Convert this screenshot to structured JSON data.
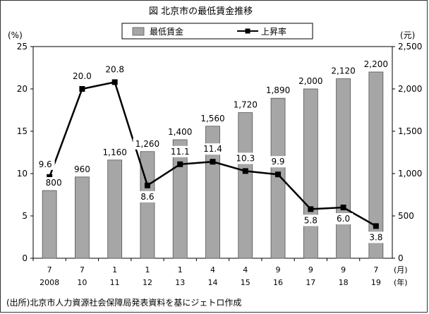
{
  "title": "図 北京市の最低賃金推移",
  "legend": {
    "bar_label": "最低賃金",
    "line_label": "上昇率"
  },
  "left_axis_unit": "(%)",
  "right_axis_unit": "(元)",
  "x_unit_month": "(月)",
  "x_unit_year": "(年)",
  "source": "(出所)北京市人力資源社会保障局発表資料を基にジェトロ作成",
  "colors": {
    "bar": "#a6a6a6",
    "bar_stroke": "#555555",
    "line": "#000000"
  },
  "chart_data": {
    "type": "bar",
    "title": "図 北京市の最低賃金推移",
    "categories": [
      {
        "month": "7",
        "year": "2008"
      },
      {
        "month": "7",
        "year": "10"
      },
      {
        "month": "1",
        "year": "11"
      },
      {
        "month": "1",
        "year": "12"
      },
      {
        "month": "1",
        "year": "13"
      },
      {
        "month": "4",
        "year": "14"
      },
      {
        "month": "4",
        "year": "15"
      },
      {
        "month": "9",
        "year": "16"
      },
      {
        "month": "9",
        "year": "17"
      },
      {
        "month": "9",
        "year": "18"
      },
      {
        "month": "7",
        "year": "19"
      }
    ],
    "series": [
      {
        "name": "最低賃金",
        "type": "bar",
        "axis": "right",
        "values": [
          800,
          960,
          1160,
          1260,
          1400,
          1560,
          1720,
          1890,
          2000,
          2120,
          2200
        ],
        "labels": [
          "800",
          "960",
          "1,160",
          "1,260",
          "1,400",
          "1,560",
          "1,720",
          "1,890",
          "2,000",
          "2,120",
          "2,200"
        ]
      },
      {
        "name": "上昇率",
        "type": "line",
        "axis": "left",
        "values": [
          9.6,
          20.0,
          20.8,
          8.6,
          11.1,
          11.4,
          10.3,
          9.9,
          5.8,
          6.0,
          3.8
        ],
        "labels": [
          "9.6",
          "20.0",
          "20.8",
          "8.6",
          "11.1",
          "11.4",
          "10.3",
          "9.9",
          "5.8",
          "6.0",
          "3.8"
        ]
      }
    ],
    "left_axis": {
      "ylim": [
        0,
        25
      ],
      "ticks": [
        0,
        5,
        10,
        15,
        20,
        25
      ],
      "tick_labels": [
        "0",
        "5",
        "10",
        "15",
        "20",
        "25"
      ]
    },
    "right_axis": {
      "ylim": [
        0,
        2500
      ],
      "ticks": [
        0,
        500,
        1000,
        1500,
        2000,
        2500
      ],
      "tick_labels": [
        "0",
        "500",
        "1,000",
        "1,500",
        "2,000",
        "2,500"
      ]
    },
    "grid": false,
    "legend_position": "top"
  }
}
